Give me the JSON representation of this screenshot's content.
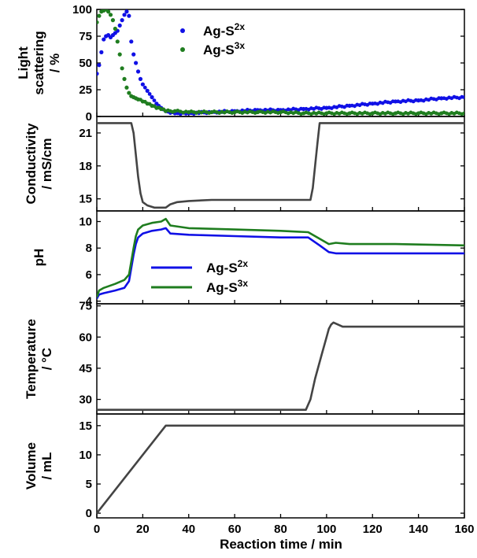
{
  "colors": {
    "ag_s2x": "#1010e6",
    "ag_s3x": "#1f7d1f",
    "single": "#444444",
    "frame": "#000000"
  },
  "x_axis": {
    "label": "Reaction time / min",
    "range": [
      0,
      160
    ],
    "ticks": [
      0,
      20,
      40,
      60,
      80,
      100,
      120,
      140,
      160
    ]
  },
  "chart_data": [
    {
      "type": "scatter",
      "ylabel": [
        "Light",
        "scattering",
        "/ %"
      ],
      "ylim": [
        0,
        100
      ],
      "yticks": [
        0,
        25,
        50,
        75,
        100
      ],
      "legend": {
        "position": "top-center",
        "entries": [
          {
            "name": "Ag-S",
            "sup": "2x",
            "color": "#1010e6"
          },
          {
            "name": "Ag-S",
            "sup": "3x",
            "color": "#1f7d1f"
          }
        ]
      },
      "series": [
        {
          "name": "Ag-S2x",
          "color": "#1010e6",
          "x": [
            0,
            1,
            2,
            3,
            4,
            5,
            6,
            7,
            8,
            9,
            10,
            11,
            12,
            13,
            14,
            15,
            16,
            17,
            18,
            19,
            20,
            22,
            24,
            26,
            28,
            30,
            34,
            40,
            50,
            60,
            70,
            80,
            90,
            100,
            110,
            120,
            130,
            140,
            150,
            160
          ],
          "y": [
            40,
            48,
            60,
            72,
            75,
            76,
            74,
            76,
            78,
            80,
            85,
            90,
            95,
            98,
            94,
            70,
            58,
            50,
            42,
            35,
            30,
            24,
            18,
            12,
            8,
            5,
            3,
            3,
            4,
            5,
            6,
            6,
            7,
            8,
            10,
            12,
            14,
            15,
            17,
            18
          ]
        },
        {
          "name": "Ag-S3x",
          "color": "#1f7d1f",
          "x": [
            0,
            1,
            2,
            3,
            4,
            5,
            6,
            7,
            8,
            9,
            10,
            11,
            12,
            13,
            14,
            15,
            16,
            17,
            18,
            20,
            22,
            24,
            26,
            28,
            30,
            34,
            40,
            50,
            60,
            70,
            80,
            90,
            100,
            110,
            120,
            130,
            140,
            150,
            160
          ],
          "y": [
            88,
            94,
            98,
            99,
            100,
            98,
            95,
            90,
            82,
            70,
            58,
            45,
            35,
            27,
            22,
            19,
            18,
            17,
            16,
            14,
            12,
            10,
            8,
            7,
            5,
            5,
            4,
            4,
            4,
            4,
            4,
            3,
            3,
            3,
            3,
            3,
            3,
            3,
            3
          ]
        }
      ]
    },
    {
      "type": "line",
      "ylabel": [
        "Conductivity",
        "/ mS/cm"
      ],
      "ylim": [
        13.9,
        22.5
      ],
      "yticks": [
        15,
        18,
        21
      ],
      "series": [
        {
          "name": "",
          "color": "#444444",
          "x": [
            0,
            15,
            16,
            17,
            18,
            19,
            20,
            22,
            25,
            30,
            32,
            35,
            40,
            50,
            60,
            80,
            93,
            94,
            95,
            96,
            97,
            100,
            110,
            130,
            160
          ],
          "y": [
            21.9,
            21.9,
            21,
            19,
            17,
            15.5,
            14.7,
            14.4,
            14.2,
            14.2,
            14.5,
            14.7,
            14.8,
            14.9,
            14.9,
            14.9,
            14.9,
            16,
            18,
            20,
            21.9,
            21.9,
            21.9,
            21.9,
            21.9
          ]
        }
      ]
    },
    {
      "type": "line",
      "ylabel": [
        "pH"
      ],
      "ylim": [
        3.8,
        10.8
      ],
      "yticks": [
        4,
        6,
        8,
        10
      ],
      "legend": {
        "position": "lower-center",
        "entries": [
          {
            "name": "Ag-S",
            "sup": "2x",
            "color": "#1010e6"
          },
          {
            "name": "Ag-S",
            "sup": "3x",
            "color": "#1f7d1f"
          }
        ]
      },
      "series": [
        {
          "name": "Ag-S2x",
          "color": "#1010e6",
          "x": [
            0,
            1,
            3,
            8,
            12,
            14,
            15,
            16,
            17,
            18,
            20,
            24,
            28,
            30,
            32,
            40,
            60,
            80,
            92,
            97,
            101,
            104,
            110,
            130,
            160
          ],
          "y": [
            4.2,
            4.5,
            4.6,
            4.8,
            5.0,
            5.5,
            6.5,
            7.5,
            8.3,
            8.8,
            9.1,
            9.3,
            9.4,
            9.5,
            9.1,
            9.0,
            8.9,
            8.8,
            8.8,
            8.2,
            7.7,
            7.6,
            7.6,
            7.6,
            7.6
          ]
        },
        {
          "name": "Ag-S3x",
          "color": "#1f7d1f",
          "x": [
            0,
            1,
            3,
            8,
            12,
            14,
            15,
            16,
            17,
            18,
            20,
            24,
            28,
            30,
            32,
            40,
            60,
            80,
            92,
            97,
            101,
            104,
            110,
            130,
            160
          ],
          "y": [
            4.3,
            4.8,
            5.0,
            5.3,
            5.6,
            6.0,
            7.0,
            8.0,
            8.9,
            9.4,
            9.7,
            9.9,
            10.0,
            10.2,
            9.7,
            9.5,
            9.4,
            9.3,
            9.2,
            8.7,
            8.3,
            8.4,
            8.3,
            8.3,
            8.2
          ]
        }
      ]
    },
    {
      "type": "line",
      "ylabel": [
        "Temperature",
        "/ °C"
      ],
      "ylim": [
        23,
        76
      ],
      "yticks": [
        30,
        45,
        60,
        75
      ],
      "series": [
        {
          "name": "",
          "color": "#444444",
          "x": [
            0,
            91,
            93,
            95,
            98,
            100,
            101,
            102,
            103,
            105,
            107,
            110,
            130,
            160
          ],
          "y": [
            25,
            25,
            30,
            40,
            52,
            60,
            64,
            66,
            67,
            66,
            65,
            65,
            65,
            65
          ]
        }
      ]
    },
    {
      "type": "line",
      "ylabel": [
        "Volume",
        "/ mL"
      ],
      "ylim": [
        -0.8,
        17
      ],
      "yticks": [
        0,
        5,
        10,
        15
      ],
      "series": [
        {
          "name": "",
          "color": "#444444",
          "x": [
            0,
            30,
            160
          ],
          "y": [
            0,
            15,
            15
          ]
        }
      ]
    }
  ]
}
